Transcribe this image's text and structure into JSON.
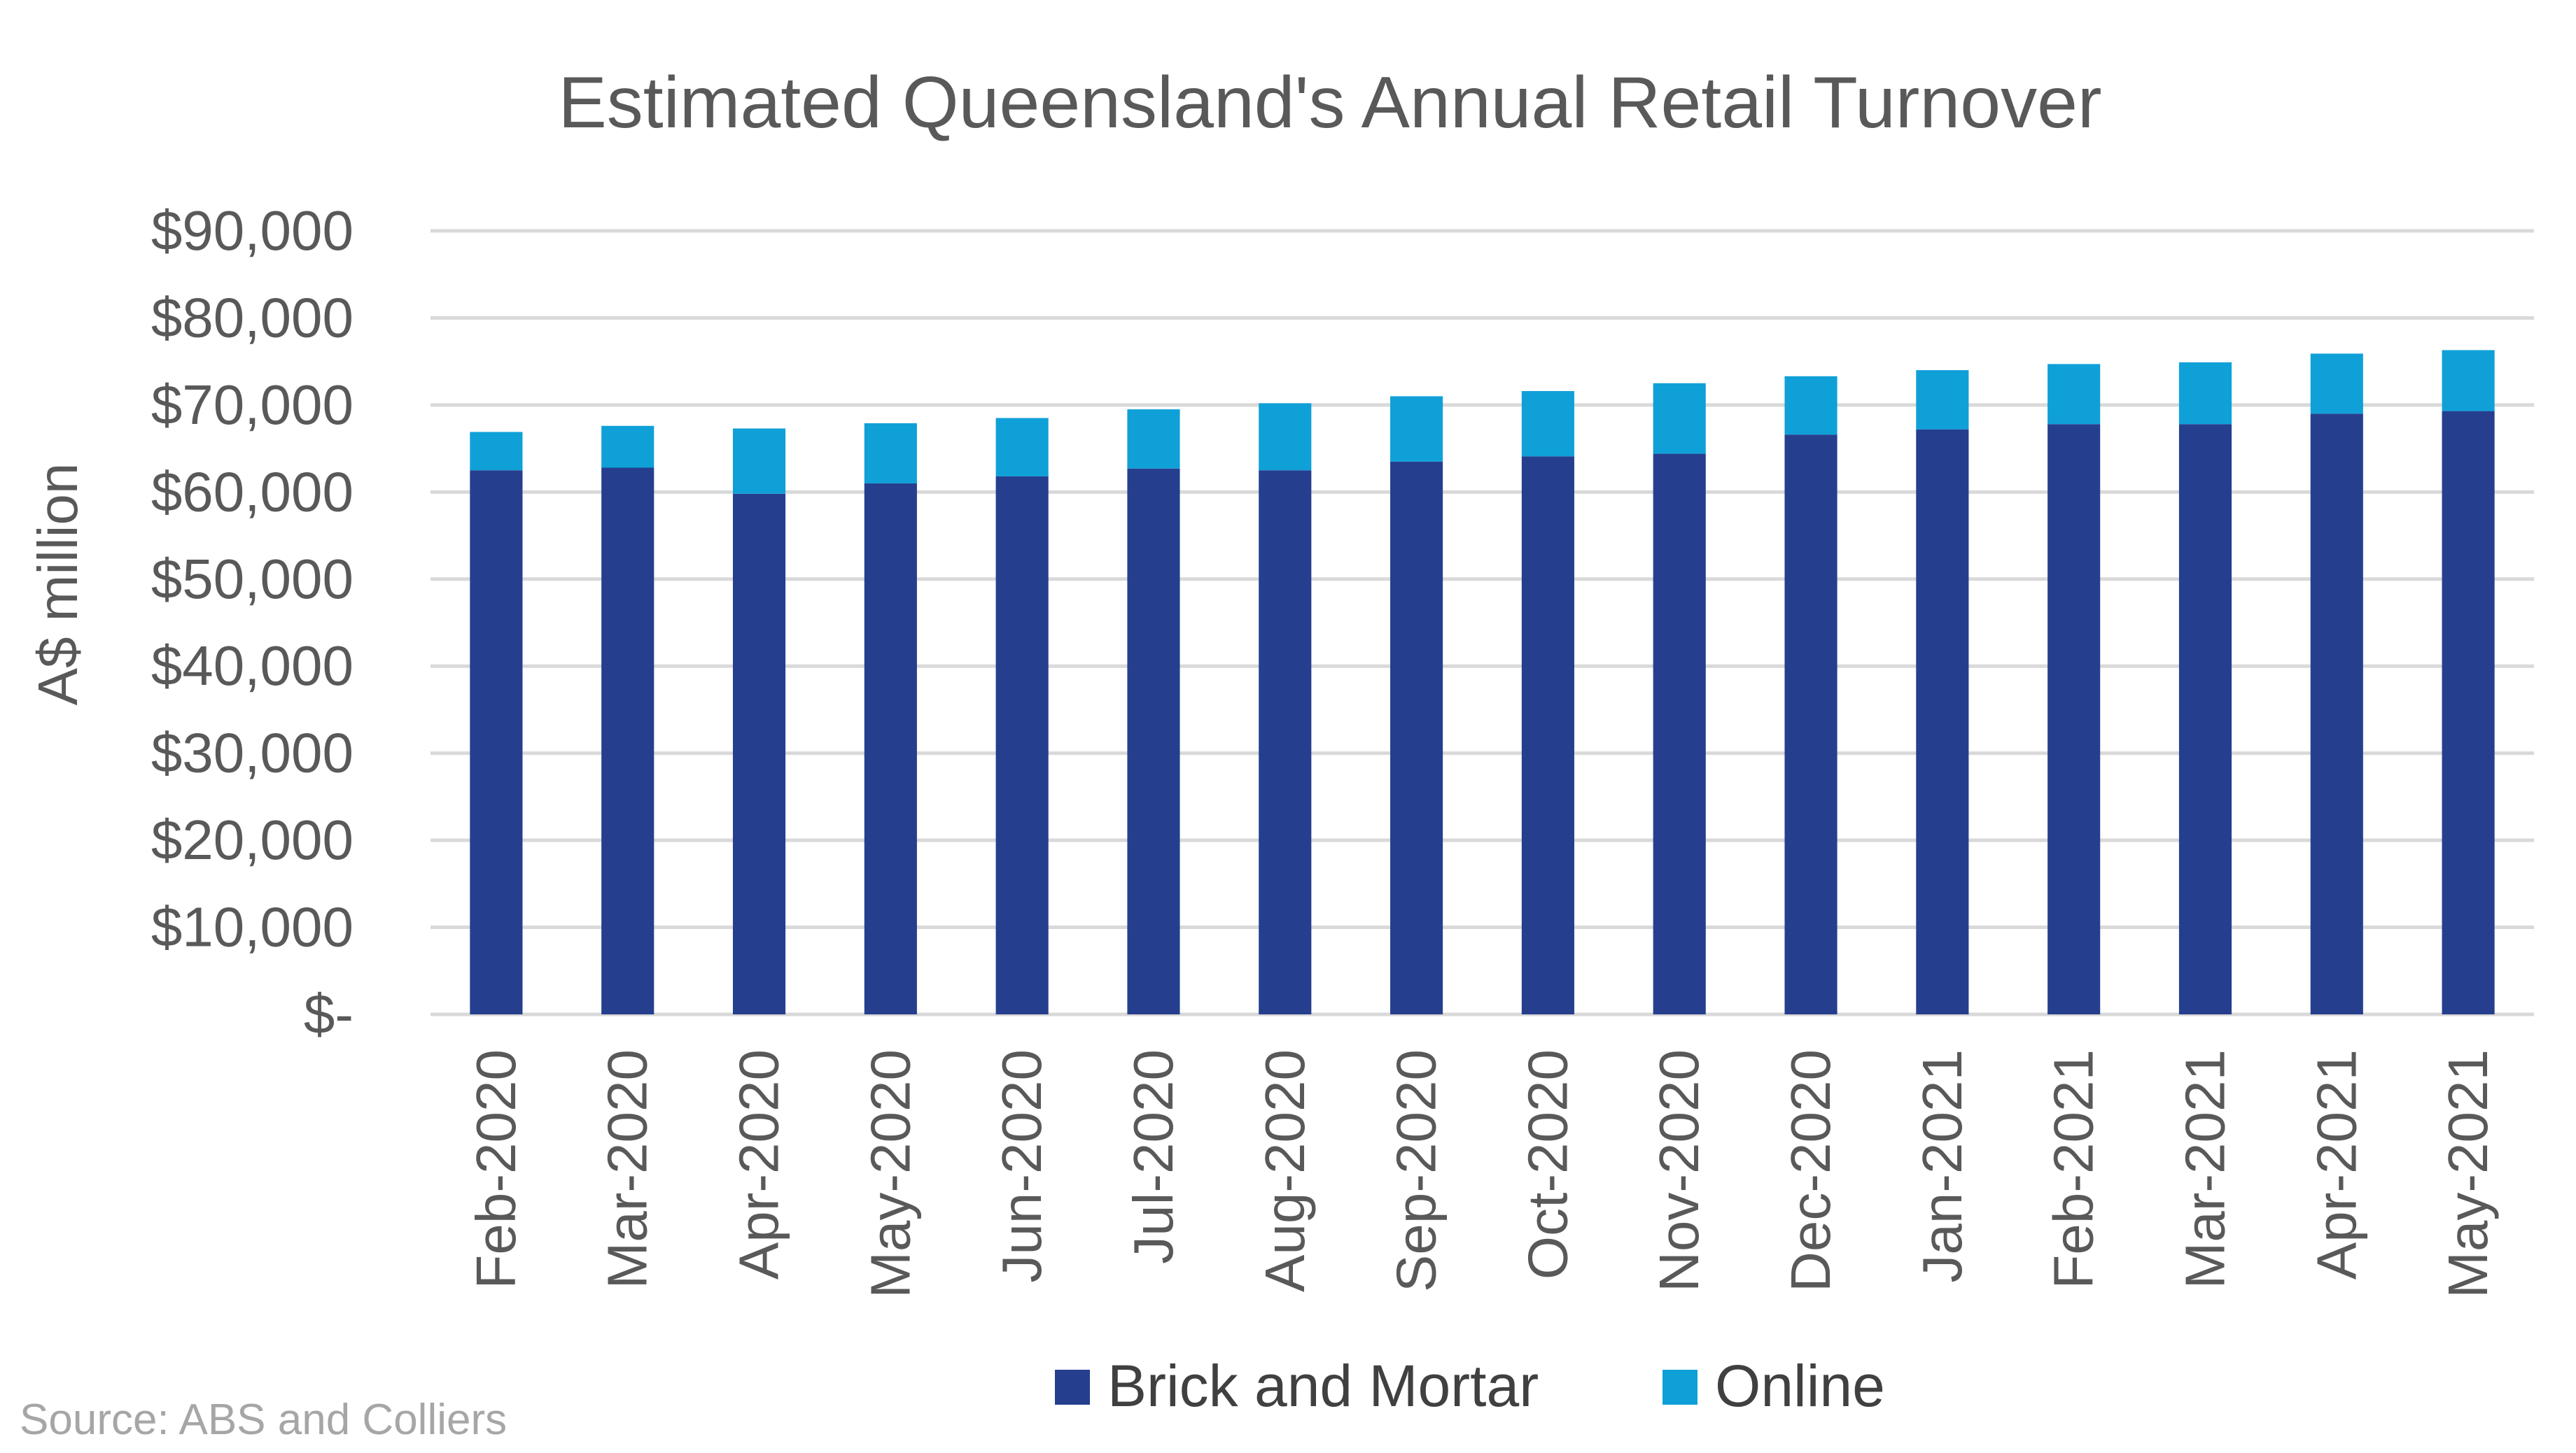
{
  "chart_data": {
    "type": "bar",
    "stacked": true,
    "title": "Estimated Queensland's Annual Retail Turnover",
    "xlabel": "",
    "ylabel": "A$ million",
    "ylim": [
      0,
      90000
    ],
    "yticks": [
      0,
      10000,
      20000,
      30000,
      40000,
      50000,
      60000,
      70000,
      80000,
      90000
    ],
    "ytick_labels": [
      "$-",
      "$10,000",
      "$20,000",
      "$30,000",
      "$40,000",
      "$50,000",
      "$60,000",
      "$70,000",
      "$80,000",
      "$90,000"
    ],
    "grid": true,
    "legend_position": "bottom",
    "categories": [
      "Feb-2020",
      "Mar-2020",
      "Apr-2020",
      "May-2020",
      "Jun-2020",
      "Jul-2020",
      "Aug-2020",
      "Sep-2020",
      "Oct-2020",
      "Nov-2020",
      "Dec-2020",
      "Jan-2021",
      "Feb-2021",
      "Mar-2021",
      "Apr-2021",
      "May-2021"
    ],
    "series": [
      {
        "name": "Brick and Mortar",
        "color": "#253f8e",
        "values": [
          62500,
          62800,
          59800,
          61000,
          61800,
          62700,
          62500,
          63500,
          64100,
          64400,
          66600,
          67200,
          67800,
          67800,
          69000,
          69300
        ]
      },
      {
        "name": "Online",
        "color": "#0fa0d8",
        "values": [
          4400,
          4800,
          7500,
          6900,
          6700,
          6800,
          7700,
          7500,
          7500,
          8100,
          6700,
          6800,
          6900,
          7100,
          6900,
          7000
        ]
      }
    ]
  },
  "source_note": "Source: ABS and Colliers"
}
